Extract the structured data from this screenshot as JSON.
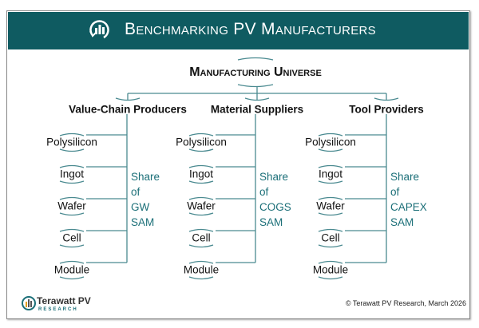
{
  "header": {
    "title": "Benchmarking PV Manufacturers",
    "icon": "chart-cycle-icon"
  },
  "root": {
    "label": "Manufacturing Universe"
  },
  "columns": [
    {
      "label": "Value-Chain Producers",
      "items": [
        "Polysilicon",
        "Ingot",
        "Wafer",
        "Cell",
        "Module"
      ],
      "share": [
        "Share",
        "of",
        "GW",
        "SAM"
      ]
    },
    {
      "label": "Material Suppliers",
      "items": [
        "Polysilicon",
        "Ingot",
        "Wafer",
        "Cell",
        "Module"
      ],
      "share": [
        "Share",
        "of",
        "COGS",
        "SAM"
      ]
    },
    {
      "label": "Tool Providers",
      "items": [
        "Polysilicon",
        "Ingot",
        "Wafer",
        "Cell",
        "Module"
      ],
      "share": [
        "Share",
        "of",
        "CAPEX",
        "SAM"
      ]
    }
  ],
  "footer": {
    "logo_name": "Terawatt PV",
    "logo_sub": "RESEARCH",
    "copyright": "© Terawatt PV Research, March 2026"
  },
  "colors": {
    "header_bg": "#0f5b61",
    "accent": "#1b6f78",
    "line": "#4a8a90"
  }
}
